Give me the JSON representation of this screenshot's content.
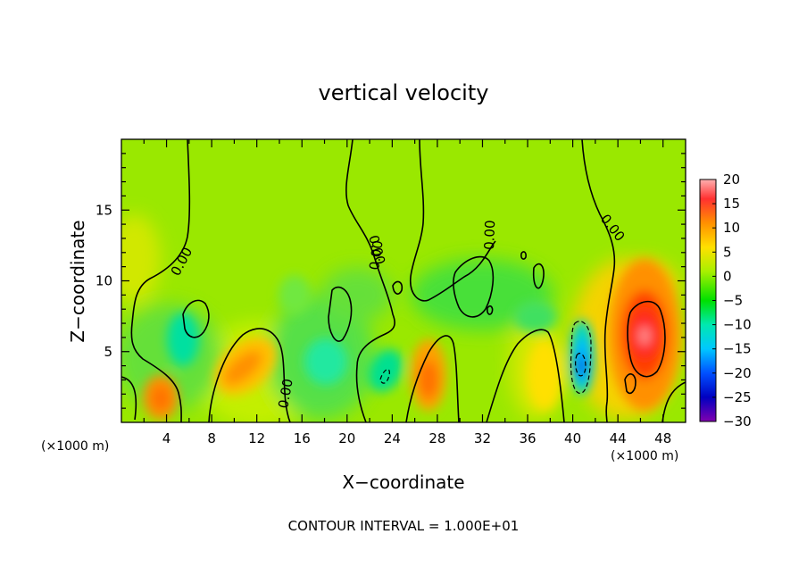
{
  "chart_data": {
    "type": "heatmap",
    "title": "vertical velocity",
    "xlabel": "X−coordinate",
    "ylabel": "Z−coordinate",
    "x_unit": "(×1000 m)",
    "footer": "CONTOUR INTERVAL = 1.000E+01",
    "xlim": [
      0,
      50
    ],
    "ylim": [
      0,
      20
    ],
    "x_ticks": [
      "4",
      "8",
      "12",
      "16",
      "20",
      "24",
      "28",
      "32",
      "36",
      "40",
      "44",
      "48"
    ],
    "x_tick_values": [
      4,
      8,
      12,
      16,
      20,
      24,
      28,
      32,
      36,
      40,
      44,
      48
    ],
    "y_ticks": [
      "5",
      "10",
      "15"
    ],
    "y_tick_values": [
      5,
      10,
      15
    ],
    "colorbar": {
      "ticks": [
        "20",
        "15",
        "10",
        "5",
        "0",
        "−5",
        "−10",
        "−15",
        "−20",
        "−25",
        "−30"
      ],
      "values": [
        20,
        15,
        10,
        5,
        0,
        -5,
        -10,
        -15,
        -20,
        -25,
        -30
      ],
      "colors": [
        "#ff8c8c",
        "#ff2020",
        "#ff8c00",
        "#ffe000",
        "#b8f000",
        "#00e000",
        "#00e0a0",
        "#00d0ff",
        "#0060ff",
        "#0000c0",
        "#7000a0"
      ]
    },
    "contour_interval": 10,
    "contour_labels": [
      "0.00",
      "0.00",
      "0.00",
      "0.00",
      "0.00",
      "0.00"
    ],
    "features": [
      {
        "kind": "updraft",
        "x": 3.5,
        "z": 1.8,
        "w": 12
      },
      {
        "kind": "updraft",
        "x": 10.5,
        "z": 3.5,
        "w": 11
      },
      {
        "kind": "updraft",
        "x": 27,
        "z": 3,
        "w": 12
      },
      {
        "kind": "updraft",
        "x": 38.5,
        "z": 4,
        "w": 4
      },
      {
        "kind": "updraft",
        "x": 46.5,
        "z": 6.5,
        "w": 19
      },
      {
        "kind": "downdraft",
        "x": 4.5,
        "z": 5.5,
        "w": -8
      },
      {
        "kind": "downdraft",
        "x": 18.5,
        "z": 3.5,
        "w": -9
      },
      {
        "kind": "downdraft",
        "x": 23,
        "z": 3,
        "w": -11
      },
      {
        "kind": "downdraft",
        "x": 41,
        "z": 4,
        "w": -26
      },
      {
        "kind": "downdraft",
        "x": 29.5,
        "z": 8,
        "w": -4
      }
    ]
  }
}
